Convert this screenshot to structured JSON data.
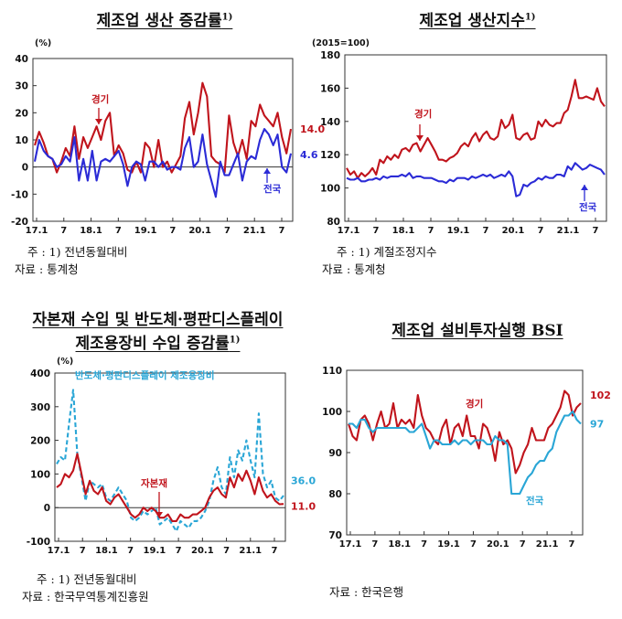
{
  "chart_data": [
    {
      "id": "c1",
      "type": "line",
      "title": "제조업 생산 증감률",
      "title_sup": "1)",
      "unit": "(%)",
      "ylim": [
        -20,
        40
      ],
      "yticks": [
        -20,
        -10,
        0,
        10,
        20,
        30,
        40
      ],
      "xticks": [
        "17.1",
        "7",
        "18.1",
        "7",
        "19.1",
        "7",
        "20.1",
        "7",
        "21.1",
        "7"
      ],
      "grid": false,
      "series": [
        {
          "name": "경기",
          "color": "#c0141c",
          "end_label": "14.0",
          "values": [
            8,
            13,
            9,
            4,
            3,
            -2,
            2,
            7,
            4,
            15,
            3,
            11,
            7,
            11,
            15,
            10,
            17,
            20,
            4,
            8,
            5,
            -1,
            -2,
            2,
            -2,
            9,
            7,
            0,
            10,
            0,
            2,
            -2,
            1,
            4,
            18,
            24,
            12,
            20,
            31,
            26,
            4,
            2,
            1,
            -2,
            19,
            9,
            4,
            10,
            3,
            17,
            15,
            23,
            19,
            17,
            15,
            20,
            11,
            5,
            14
          ]
        },
        {
          "name": "전국",
          "color": "#2b2bd6",
          "end_label": "4.6",
          "values": [
            2,
            10,
            6,
            4,
            3,
            0,
            1,
            4,
            2,
            11,
            -5,
            3,
            -5,
            6,
            -5,
            2,
            3,
            2,
            4,
            6,
            1,
            -7,
            0,
            2,
            1,
            -5,
            2,
            2,
            0,
            2,
            -1,
            0,
            0,
            -1,
            7,
            11,
            0,
            2,
            12,
            1,
            -5,
            -11,
            2,
            -3,
            -3,
            1,
            5,
            -5,
            2,
            4,
            3,
            10,
            14,
            12,
            8,
            12,
            0,
            -2,
            5
          ]
        }
      ],
      "annotations": [
        {
          "text": "경기",
          "color": "#c0141c"
        },
        {
          "text": "전국",
          "color": "#2b2bd6"
        }
      ]
    },
    {
      "id": "c2",
      "type": "line",
      "title": "제조업 생산지수",
      "title_sup": "1)",
      "unit": "(2015=100)",
      "ylim": [
        80,
        180
      ],
      "yticks": [
        80,
        100,
        120,
        140,
        160,
        180
      ],
      "xticks": [
        "17.1",
        "7",
        "18.1",
        "7",
        "19.1",
        "7",
        "20.1",
        "7",
        "21.1",
        "7"
      ],
      "grid": false,
      "series": [
        {
          "name": "경기",
          "color": "#c0141c",
          "values": [
            112,
            108,
            110,
            106,
            109,
            107,
            109,
            112,
            108,
            117,
            115,
            119,
            117,
            120,
            118,
            123,
            124,
            122,
            126,
            127,
            122,
            126,
            130,
            126,
            122,
            117,
            117,
            116,
            118,
            119,
            121,
            125,
            127,
            125,
            130,
            133,
            128,
            132,
            134,
            130,
            129,
            131,
            141,
            136,
            138,
            144,
            130,
            129,
            132,
            133,
            129,
            130,
            140,
            137,
            141,
            138,
            137,
            139,
            139,
            145,
            147,
            155,
            165,
            154,
            154,
            155,
            154,
            153,
            160,
            152,
            149
          ]
        },
        {
          "name": "전국",
          "color": "#2b2bd6",
          "values": [
            106,
            105,
            105,
            106,
            104,
            104,
            105,
            105,
            106,
            105,
            107,
            106,
            107,
            107,
            107,
            108,
            107,
            109,
            106,
            107,
            107,
            106,
            106,
            106,
            105,
            104,
            104,
            103,
            105,
            104,
            106,
            106,
            106,
            105,
            107,
            106,
            107,
            108,
            107,
            108,
            106,
            107,
            108,
            107,
            110,
            107,
            95,
            96,
            102,
            101,
            103,
            104,
            106,
            105,
            107,
            106,
            106,
            108,
            108,
            107,
            113,
            111,
            115,
            113,
            111,
            112,
            114,
            113,
            112,
            111,
            108
          ]
        }
      ],
      "annotations": [
        {
          "text": "경기",
          "color": "#c0141c"
        },
        {
          "text": "전국",
          "color": "#2b2bd6"
        }
      ]
    },
    {
      "id": "c3",
      "type": "line",
      "title_lines": [
        "자본재 수입 및 반도체·평판디스플레이",
        "제조용장비 수입 증감률"
      ],
      "title_sup": "1)",
      "unit": "(%)",
      "ylim": [
        -100,
        400
      ],
      "yticks": [
        -100,
        0,
        100,
        200,
        300,
        400
      ],
      "xticks": [
        "17.1",
        "7",
        "18.1",
        "7",
        "19.1",
        "7",
        "20.1",
        "7",
        "21.1",
        "7"
      ],
      "grid": false,
      "series": [
        {
          "name": "반도체·평판디스플레이 제조용장비",
          "color": "#2aa6d6",
          "dash": true,
          "end_label": "36.0",
          "values": [
            130,
            150,
            140,
            250,
            350,
            160,
            90,
            20,
            80,
            70,
            60,
            70,
            30,
            20,
            40,
            60,
            40,
            20,
            -30,
            -40,
            -30,
            -10,
            -20,
            -10,
            0,
            -50,
            -40,
            -30,
            -50,
            -70,
            -40,
            -50,
            -60,
            -40,
            -40,
            -30,
            -10,
            20,
            80,
            120,
            60,
            40,
            150,
            90,
            170,
            140,
            200,
            140,
            90,
            280,
            100,
            60,
            80,
            30,
            20,
            36
          ]
        },
        {
          "name": "자본재",
          "color": "#c0141c",
          "end_label": "11.0",
          "values": [
            60,
            70,
            100,
            90,
            110,
            160,
            100,
            40,
            80,
            50,
            40,
            60,
            20,
            10,
            30,
            40,
            20,
            0,
            -20,
            -30,
            -20,
            0,
            -10,
            0,
            -10,
            -30,
            -30,
            -20,
            -40,
            -40,
            -20,
            -30,
            -30,
            -20,
            -20,
            -10,
            0,
            30,
            50,
            60,
            40,
            30,
            90,
            60,
            100,
            80,
            110,
            80,
            40,
            90,
            50,
            30,
            40,
            20,
            10,
            11
          ]
        }
      ],
      "annotations": [
        {
          "text": "반도체·평판디스플레이 제조용장비",
          "color": "#2aa6d6"
        },
        {
          "text": "자본재",
          "color": "#c0141c"
        }
      ]
    },
    {
      "id": "c4",
      "type": "line",
      "title": "제조업 설비투자실행 BSI",
      "ylim": [
        70,
        110
      ],
      "yticks": [
        70,
        80,
        90,
        100,
        110
      ],
      "xticks": [
        "17.1",
        "7",
        "18.1",
        "7",
        "19.1",
        "7",
        "20.1",
        "7",
        "21.1",
        "7"
      ],
      "grid": false,
      "series": [
        {
          "name": "경기",
          "color": "#c0141c",
          "end_label": "102",
          "values": [
            97,
            94,
            93,
            98,
            99,
            97,
            93,
            97,
            100,
            96,
            97,
            102,
            96,
            98,
            97,
            98,
            96,
            104,
            99,
            96,
            95,
            93,
            92,
            96,
            98,
            92,
            96,
            97,
            94,
            99,
            94,
            94,
            91,
            97,
            96,
            93,
            88,
            95,
            92,
            93,
            91,
            85,
            87,
            90,
            92,
            96,
            93,
            93,
            93,
            96,
            97,
            99,
            101,
            105,
            104,
            99,
            101,
            102
          ]
        },
        {
          "name": "전국",
          "color": "#2aa6d6",
          "end_label": "97",
          "values": [
            97,
            97,
            96,
            98,
            98,
            96,
            95,
            96,
            96,
            96,
            96,
            96,
            96,
            96,
            96,
            95,
            95,
            96,
            97,
            94,
            91,
            93,
            93,
            92,
            92,
            92,
            93,
            92,
            93,
            93,
            92,
            93,
            93,
            93,
            92,
            92,
            94,
            93,
            93,
            92,
            80,
            80,
            80,
            82,
            84,
            85,
            87,
            88,
            88,
            90,
            91,
            95,
            97,
            99,
            99,
            100,
            98,
            97
          ]
        }
      ],
      "annotations": [
        {
          "text": "경기",
          "color": "#c0141c"
        },
        {
          "text": "전국",
          "color": "#2aa6d6"
        }
      ]
    }
  ],
  "notes": {
    "c1_note": "주 : 1) 전년동월대비",
    "c1_source": "자료 : 통계청",
    "c2_note": "주 : 1) 계절조정지수",
    "c2_source": "자료 : 통계청",
    "c3_note": "주 : 1) 전년동월대비",
    "c3_source": "자료 : 한국무역통계진흥원",
    "c4_source": "자료 : 한국은행"
  },
  "colors": {
    "red": "#c0141c",
    "blue": "#2b2bd6",
    "cyan": "#2aa6d6"
  }
}
